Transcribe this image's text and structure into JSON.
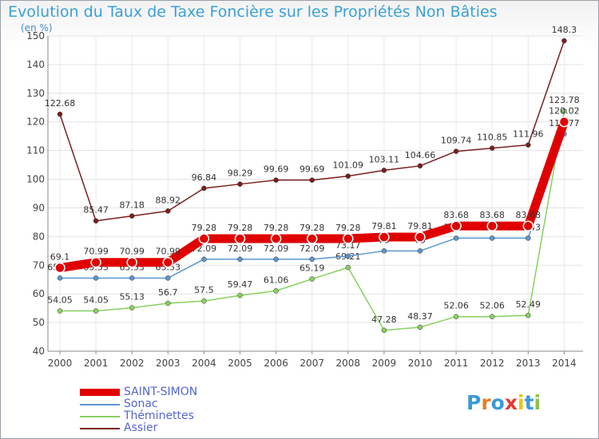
{
  "header": {
    "title": "Evolution du Taux de Taxe Foncière sur les Propriétés Non Bâties",
    "subtitle": "(en %)"
  },
  "brand": {
    "letters": [
      "P",
      "r",
      "o",
      "x",
      "i",
      "t",
      "i"
    ],
    "colors": [
      "#3a9ad9",
      "#e67e22",
      "#3a9ad9",
      "#e53935",
      "#f1c40f",
      "#3a9ad9",
      "#8bc34a"
    ]
  },
  "chart_data": {
    "type": "line",
    "title": "Evolution du Taux de Taxe Foncière sur les Propriétés Non Bâties",
    "subtitle": "(en %)",
    "categories": [
      "2000",
      "2001",
      "2002",
      "2003",
      "2004",
      "2005",
      "2006",
      "2007",
      "2008",
      "2009",
      "2010",
      "2011",
      "2012",
      "2013",
      "2014"
    ],
    "ylim": [
      40,
      150
    ],
    "yticks": [
      40,
      50,
      60,
      70,
      80,
      90,
      100,
      110,
      120,
      130,
      140,
      150
    ],
    "grid": true,
    "legend_position": "bottom-left",
    "series": [
      {
        "name": "Assier",
        "color": "#7a1f1f",
        "values": [
          122.68,
          85.47,
          87.18,
          88.92,
          96.84,
          98.29,
          99.69,
          99.69,
          101.09,
          103.11,
          104.66,
          109.74,
          110.85,
          111.96,
          148.3
        ],
        "labels": [
          "122.68",
          "85.47",
          "87.18",
          "88.92",
          "96.84",
          "98.29",
          "99.69",
          "99.69",
          "101.09",
          "103.11",
          "104.66",
          "109.74",
          "110.85",
          "111.96",
          "148.3"
        ]
      },
      {
        "name": "Théminettes",
        "color": "#88d060",
        "values": [
          54.05,
          54.05,
          55.13,
          56.7,
          57.5,
          59.47,
          61.06,
          65.19,
          69.21,
          47.28,
          48.37,
          52.06,
          52.06,
          52.49,
          123.78
        ],
        "labels": [
          "54.05",
          "54.05",
          "55.13",
          "56.7",
          "57.5",
          "59.47",
          "61.06",
          "65.19",
          "69.21",
          "47.28",
          "48.37",
          "52.06",
          "52.06",
          "52.49",
          "123.78"
        ]
      },
      {
        "name": "Sonac",
        "color": "#5c96cc",
        "values": [
          65.53,
          65.53,
          65.53,
          65.53,
          72.09,
          72.09,
          72.09,
          72.09,
          73.17,
          75,
          75,
          79.43,
          79.43,
          79.43,
          115.77
        ],
        "labels": [
          "65.53",
          "65.53",
          "65.53",
          "65.53",
          "72.09",
          "72.09",
          "72.09",
          "72.09",
          "73.17",
          "75",
          "75",
          "79.43",
          "79.43",
          "79.43",
          "115.77"
        ]
      },
      {
        "name": "SAINT-SIMON",
        "color": "#e00000",
        "values": [
          69.1,
          70.99,
          70.99,
          70.99,
          79.28,
          79.28,
          79.28,
          79.28,
          79.28,
          79.81,
          79.81,
          83.68,
          83.68,
          83.68,
          120.02
        ],
        "labels": [
          "69.1",
          "70.99",
          "70.99",
          "70.99",
          "79.28",
          "79.28",
          "79.28",
          "79.28",
          "79.28",
          "79.81",
          "79.81",
          "83.68",
          "83.68",
          "83.68",
          "120.02"
        ]
      }
    ],
    "legend": [
      {
        "name": "SAINT-SIMON",
        "color": "#e00000"
      },
      {
        "name": "Sonac",
        "color": "#5c96cc"
      },
      {
        "name": "Théminettes",
        "color": "#88d060"
      },
      {
        "name": "Assier",
        "color": "#7a1f1f"
      }
    ]
  }
}
